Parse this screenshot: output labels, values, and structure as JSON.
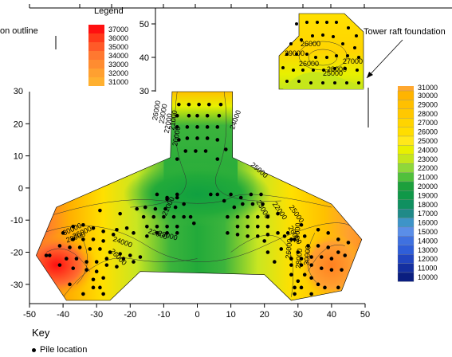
{
  "chart_data": {
    "type": "heatmap",
    "subtype": "contour",
    "x_ticks": [
      -50,
      -40,
      -30,
      -20,
      -10,
      0,
      10,
      20,
      30,
      40,
      50
    ],
    "y_ticks": [
      20,
      10,
      0,
      -10,
      -20,
      -30
    ],
    "y_ticks_partial": [
      30
    ],
    "xlim": [
      -50,
      50
    ],
    "ylim": [
      -36,
      30
    ],
    "inset_y_ticks": [
      50,
      40,
      30
    ],
    "colorbar": {
      "levels": [
        30000,
        29000,
        28000,
        27000,
        26000,
        25000,
        24000,
        23000,
        22000,
        21000,
        20000,
        19000,
        18000,
        17000,
        16000,
        15000,
        14000,
        13000,
        12000,
        11000,
        10000
      ],
      "colors": [
        "#FFB400",
        "#FFC000",
        "#FFC800",
        "#FFD400",
        "#FFDD00",
        "#FFE81A",
        "#E8F000",
        "#C4E61C",
        "#8ED83A",
        "#50C03C",
        "#1CA03C",
        "#109848",
        "#109060",
        "#208A88",
        "#3E94C8",
        "#5A8EE8",
        "#3F71E0",
        "#2F5ED8",
        "#2145C0",
        "#142FA0",
        "#0A1E80"
      ],
      "partial_top": "31000"
    },
    "inset_legend": {
      "title": "Legend",
      "levels": [
        37000,
        36000,
        35000,
        34000,
        33000,
        32000,
        31000
      ],
      "colors": [
        "#FF1010",
        "#FF3A1A",
        "#FF5A28",
        "#FF7830",
        "#FF8C30",
        "#FFA030",
        "#FFB030"
      ]
    },
    "contour_labels": [
      {
        "text": "24000",
        "x": 12,
        "y": 21,
        "rot": -70
      },
      {
        "text": "26000",
        "x": -11.5,
        "y": 24,
        "rot": -80
      },
      {
        "text": "23000",
        "x": -9.5,
        "y": 23,
        "rot": -80
      },
      {
        "text": "22000",
        "x": -8,
        "y": 20,
        "rot": -80
      },
      {
        "text": "21000",
        "x": -6.5,
        "y": 21,
        "rot": -80
      },
      {
        "text": "20000",
        "x": -5.5,
        "y": 16,
        "rot": -80
      },
      {
        "text": "25000",
        "x": 18,
        "y": 5,
        "rot": 40
      },
      {
        "text": "21000",
        "x": -8,
        "y": -6,
        "rot": -65
      },
      {
        "text": "23000",
        "x": 19,
        "y": -7,
        "rot": 60
      },
      {
        "text": "22000",
        "x": 24,
        "y": -7.5,
        "rot": 55
      },
      {
        "text": "25000",
        "x": 29,
        "y": -8.5,
        "rot": 55
      },
      {
        "text": "22000",
        "x": -12,
        "y": -15,
        "rot": 20
      },
      {
        "text": "23000",
        "x": -9,
        "y": -15.5,
        "rot": 15
      },
      {
        "text": "24000",
        "x": -22.5,
        "y": -17.5,
        "rot": 20
      },
      {
        "text": "26000",
        "x": -24,
        "y": -22,
        "rot": 45
      },
      {
        "text": "28000",
        "x": -36,
        "y": -16,
        "rot": -20
      },
      {
        "text": "30000",
        "x": -37,
        "y": -13.5,
        "rot": -25
      },
      {
        "text": "26000",
        "x": -34,
        "y": -14.5,
        "rot": -25
      },
      {
        "text": "24000",
        "x": 30.5,
        "y": -14,
        "rot": -85
      },
      {
        "text": "26000",
        "x": 28,
        "y": -19,
        "rot": -85
      },
      {
        "text": "28000",
        "x": 31,
        "y": -22,
        "rot": -85
      },
      {
        "text": "30000",
        "x": 33.5,
        "y": -21,
        "rot": -85
      },
      {
        "text": "26000",
        "x": 28.5,
        "y": -15,
        "rot": 60
      }
    ],
    "piles": [
      [
        -5.5,
        26
      ],
      [
        -2.5,
        26
      ],
      [
        0.5,
        26
      ],
      [
        3.5,
        26
      ],
      [
        7,
        26
      ],
      [
        -6,
        22.5
      ],
      [
        -2.5,
        22.5
      ],
      [
        0,
        22.5
      ],
      [
        3,
        22.5
      ],
      [
        6.5,
        22.5
      ],
      [
        -6,
        19
      ],
      [
        -3,
        19
      ],
      [
        0,
        19
      ],
      [
        3,
        19
      ],
      [
        6,
        19
      ],
      [
        -5.5,
        15
      ],
      [
        -3,
        15.5
      ],
      [
        0,
        15.5
      ],
      [
        3,
        15.5
      ],
      [
        6,
        15
      ],
      [
        -3.5,
        11.5
      ],
      [
        -0.5,
        11.5
      ],
      [
        2.5,
        11.5
      ],
      [
        -6,
        9
      ],
      [
        6,
        9
      ],
      [
        8.5,
        12
      ],
      [
        -12,
        -2
      ],
      [
        -9,
        -3.5
      ],
      [
        -6,
        -2
      ],
      [
        -4,
        -5
      ],
      [
        -6.5,
        -6
      ],
      [
        -9.5,
        -6.5
      ],
      [
        -12.5,
        -6.5
      ],
      [
        -15.5,
        -6
      ],
      [
        -18,
        -6.5
      ],
      [
        -16,
        -9
      ],
      [
        -13,
        -9
      ],
      [
        -10,
        -9
      ],
      [
        -7,
        -9
      ],
      [
        -4,
        -9
      ],
      [
        -2,
        -9
      ],
      [
        -1,
        -11
      ],
      [
        -15,
        -12
      ],
      [
        -12,
        -12
      ],
      [
        -9,
        -12
      ],
      [
        -6,
        -12
      ],
      [
        -6,
        -14
      ],
      [
        -9,
        -14
      ],
      [
        -12,
        -14
      ],
      [
        -15,
        -15
      ],
      [
        -19,
        -14
      ],
      [
        -21,
        -12.5
      ],
      [
        -24,
        -13
      ],
      [
        -23,
        -8
      ],
      [
        -29,
        -7
      ],
      [
        10,
        -2
      ],
      [
        13,
        -3
      ],
      [
        16,
        -2
      ],
      [
        19,
        -2
      ],
      [
        13.5,
        -5
      ],
      [
        16.5,
        -5
      ],
      [
        19.5,
        -5
      ],
      [
        11,
        -6
      ],
      [
        9,
        -9
      ],
      [
        12,
        -9
      ],
      [
        15,
        -9
      ],
      [
        18,
        -9
      ],
      [
        21,
        -9
      ],
      [
        24,
        -8
      ],
      [
        12,
        -12
      ],
      [
        15,
        -12
      ],
      [
        18,
        -12
      ],
      [
        21,
        -12
      ],
      [
        9,
        -14
      ],
      [
        12,
        -14.5
      ],
      [
        15,
        -15
      ],
      [
        18,
        -15
      ],
      [
        21,
        -14.5
      ],
      [
        24,
        -14
      ],
      [
        27,
        -14
      ],
      [
        31,
        -11.5
      ],
      [
        28,
        -16
      ],
      [
        20,
        -16.5
      ],
      [
        -9,
        -3
      ],
      [
        -6,
        -3
      ],
      [
        4,
        -2
      ],
      [
        6,
        -2
      ],
      [
        8,
        -4
      ],
      [
        -37,
        -12
      ],
      [
        -34,
        -11.5
      ],
      [
        -31,
        -12.5
      ],
      [
        -28,
        -13.5
      ],
      [
        -25,
        -14.5
      ],
      [
        -40,
        -14
      ],
      [
        -37,
        -16
      ],
      [
        -34,
        -16
      ],
      [
        -31,
        -16
      ],
      [
        -28,
        -16.5
      ],
      [
        -41,
        -18
      ],
      [
        -38,
        -18.5
      ],
      [
        -35,
        -18.5
      ],
      [
        -32,
        -19
      ],
      [
        -29,
        -19
      ],
      [
        -26,
        -20
      ],
      [
        -23,
        -20.5
      ],
      [
        -20,
        -21
      ],
      [
        -17,
        -21.5
      ],
      [
        -39,
        -22
      ],
      [
        -36,
        -22
      ],
      [
        -33,
        -23
      ],
      [
        -30,
        -23
      ],
      [
        -27,
        -24
      ],
      [
        -24,
        -24.5
      ],
      [
        -44,
        -21
      ],
      [
        -41,
        -24
      ],
      [
        -37,
        -25
      ],
      [
        -33,
        -25.5
      ],
      [
        -30,
        -26
      ],
      [
        -31,
        -28.5
      ],
      [
        -28,
        -28
      ],
      [
        -31,
        -31
      ],
      [
        -29,
        -31
      ],
      [
        -22,
        -22
      ],
      [
        -19,
        -23
      ],
      [
        -27,
        -22
      ],
      [
        29,
        -16
      ],
      [
        32,
        -15
      ],
      [
        36,
        -13
      ],
      [
        39,
        -14
      ],
      [
        42,
        -16
      ],
      [
        45,
        -17
      ],
      [
        30,
        -20
      ],
      [
        33,
        -18
      ],
      [
        36,
        -18
      ],
      [
        39,
        -18.5
      ],
      [
        42,
        -20
      ],
      [
        44,
        -21
      ],
      [
        28,
        -22
      ],
      [
        31,
        -22
      ],
      [
        34,
        -21.5
      ],
      [
        37,
        -21.5
      ],
      [
        40,
        -22
      ],
      [
        28,
        -24
      ],
      [
        31,
        -24
      ],
      [
        34,
        -24
      ],
      [
        37,
        -25
      ],
      [
        40,
        -25.5
      ],
      [
        43,
        -25.5
      ],
      [
        28,
        -27
      ],
      [
        30,
        -29
      ],
      [
        32,
        -27
      ],
      [
        34,
        -28
      ],
      [
        36,
        -30
      ],
      [
        29,
        -31
      ],
      [
        31,
        -31
      ],
      [
        38,
        -31
      ],
      [
        42,
        -31
      ],
      [
        25,
        -19
      ],
      [
        23,
        -23
      ],
      [
        21,
        -20
      ],
      [
        26,
        -15
      ],
      [
        -45,
        -21
      ],
      [
        -38,
        -30
      ],
      [
        -34,
        -33
      ],
      [
        -28,
        -33
      ],
      [
        29,
        -33
      ],
      [
        34,
        -33
      ]
    ],
    "inset_piles": [
      [
        75,
        8
      ],
      [
        76,
        6
      ],
      [
        77,
        4
      ],
      [
        78,
        2
      ],
      [
        79,
        0
      ],
      [
        80,
        -2
      ],
      [
        81,
        -3
      ],
      [
        82,
        -4
      ],
      [
        83,
        -5
      ],
      [
        84,
        6
      ],
      [
        85,
        4
      ],
      [
        86,
        2
      ],
      [
        87,
        1
      ],
      [
        88,
        3
      ],
      [
        89,
        5
      ],
      [
        90,
        7
      ],
      [
        91,
        9
      ],
      [
        83,
        8
      ],
      [
        85,
        9
      ],
      [
        87,
        9
      ],
      [
        89,
        9
      ],
      [
        76,
        -5
      ],
      [
        79,
        -6
      ],
      [
        82,
        -7
      ],
      [
        85,
        -8
      ],
      [
        88,
        -8
      ],
      [
        90,
        -8
      ],
      [
        92,
        -7
      ],
      [
        94,
        -2
      ],
      [
        96,
        0
      ],
      [
        97,
        2
      ],
      [
        98,
        4
      ],
      [
        95,
        6
      ],
      [
        93,
        8
      ],
      [
        97,
        8
      ]
    ],
    "inset_labels": [
      "29000",
      "26000",
      "28000",
      "26000",
      "27000",
      "25000"
    ],
    "annotations": {
      "tower_raft": "Tower raft foundation",
      "outline_partial": "on outline",
      "legend_partial": "Legend"
    },
    "key": {
      "title": "Key",
      "items": [
        "Pile location"
      ]
    }
  }
}
